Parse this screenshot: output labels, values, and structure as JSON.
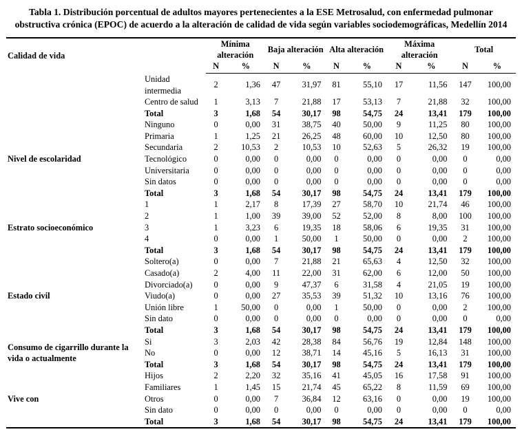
{
  "title": "Tabla 1. Distribución porcentual de adultos mayores pertenecientes a la ESE Metrosalud, con enfermedad pulmonar obstructiva crónica (EPOC) de acuerdo a la alteración de calidad de vida según variables sociodemográficas, Medellín 2014",
  "table": {
    "first_col_header": "Calidad de vida",
    "group_headers": [
      "Mínima alteración",
      "Baja alteración",
      "Alta alteración",
      "Máxima alteración",
      "Total"
    ],
    "sub_headers": [
      "N",
      "%"
    ],
    "groups": [
      {
        "label": "",
        "rows": [
          {
            "label": "Unidad intermedia",
            "bold": false,
            "values": [
              "2",
              "1,36",
              "47",
              "31,97",
              "81",
              "55,10",
              "17",
              "11,56",
              "147",
              "100,00"
            ]
          },
          {
            "label": "Centro de salud",
            "bold": false,
            "values": [
              "1",
              "3,13",
              "7",
              "21,88",
              "17",
              "53,13",
              "7",
              "21,88",
              "32",
              "100,00"
            ]
          },
          {
            "label": "Total",
            "bold": true,
            "values": [
              "3",
              "1,68",
              "54",
              "30,17",
              "98",
              "54,75",
              "24",
              "13,41",
              "179",
              "100,00"
            ]
          }
        ]
      },
      {
        "label": "Nivel de escolaridad",
        "rows": [
          {
            "label": "Ninguno",
            "bold": false,
            "values": [
              "0",
              "0,00",
              "31",
              "38,75",
              "40",
              "50,00",
              "9",
              "11,25",
              "80",
              "100,00"
            ]
          },
          {
            "label": "Primaria",
            "bold": false,
            "values": [
              "1",
              "1,25",
              "21",
              "26,25",
              "48",
              "60,00",
              "10",
              "12,50",
              "80",
              "100,00"
            ]
          },
          {
            "label": "Secundaria",
            "bold": false,
            "values": [
              "2",
              "10,53",
              "2",
              "10,53",
              "10",
              "52,63",
              "5",
              "26,32",
              "19",
              "100,00"
            ]
          },
          {
            "label": "Tecnológico",
            "bold": false,
            "values": [
              "0",
              "0,00",
              "0",
              "0,00",
              "0",
              "0,00",
              "0",
              "0,00",
              "0",
              "0,00"
            ]
          },
          {
            "label": "Universitaria",
            "bold": false,
            "values": [
              "0",
              "0,00",
              "0",
              "0,00",
              "0",
              "0,00",
              "0",
              "0,00",
              "0",
              "0,00"
            ]
          },
          {
            "label": "Sin datos",
            "bold": false,
            "values": [
              "0",
              "0,00",
              "0",
              "0,00",
              "0",
              "0,00",
              "0",
              "0,00",
              "0",
              "0,00"
            ]
          },
          {
            "label": "Total",
            "bold": true,
            "values": [
              "3",
              "1,68",
              "54",
              "30,17",
              "98",
              "54,75",
              "24",
              "13,41",
              "179",
              "100,00"
            ]
          }
        ]
      },
      {
        "label": "Estrato socioeconómico",
        "rows": [
          {
            "label": "1",
            "bold": false,
            "values": [
              "1",
              "2,17",
              "8",
              "17,39",
              "27",
              "58,70",
              "10",
              "21,74",
              "46",
              "100,00"
            ]
          },
          {
            "label": "2",
            "bold": false,
            "values": [
              "1",
              "1,00",
              "39",
              "39,00",
              "52",
              "52,00",
              "8",
              "8,00",
              "100",
              "100,00"
            ]
          },
          {
            "label": "3",
            "bold": false,
            "values": [
              "1",
              "3,23",
              "6",
              "19,35",
              "18",
              "58,06",
              "6",
              "19,35",
              "31",
              "100,00"
            ]
          },
          {
            "label": "4",
            "bold": false,
            "values": [
              "0",
              "0,00",
              "1",
              "50,00",
              "1",
              "50,00",
              "0",
              "0,00",
              "2",
              "100,00"
            ]
          },
          {
            "label": "Total",
            "bold": true,
            "values": [
              "3",
              "1,68",
              "54",
              "30,17",
              "98",
              "54,75",
              "24",
              "13,41",
              "179",
              "100,00"
            ]
          }
        ]
      },
      {
        "label": "Estado civil",
        "rows": [
          {
            "label": "Soltero(a)",
            "bold": false,
            "values": [
              "0",
              "0,00",
              "7",
              "21,88",
              "21",
              "65,63",
              "4",
              "12,50",
              "32",
              "100,00"
            ]
          },
          {
            "label": "Casado(a)",
            "bold": false,
            "values": [
              "2",
              "4,00",
              "11",
              "22,00",
              "31",
              "62,00",
              "6",
              "12,00",
              "50",
              "100,00"
            ]
          },
          {
            "label": "Divorciado(a)",
            "bold": false,
            "values": [
              "0",
              "0,00",
              "9",
              "47,37",
              "6",
              "31,58",
              "4",
              "21,05",
              "19",
              "100,00"
            ]
          },
          {
            "label": "Viudo(a)",
            "bold": false,
            "values": [
              "0",
              "0,00",
              "27",
              "35,53",
              "39",
              "51,32",
              "10",
              "13,16",
              "76",
              "100,00"
            ]
          },
          {
            "label": "Unión libre",
            "bold": false,
            "values": [
              "1",
              "50,00",
              "0",
              "0,00",
              "1",
              "50,00",
              "0",
              "0,00",
              "2",
              "100,00"
            ]
          },
          {
            "label": "Sin dato",
            "bold": false,
            "values": [
              "0",
              "0,00",
              "0",
              "0,00",
              "0",
              "0,00",
              "0",
              "0,00",
              "0",
              "0,00"
            ]
          },
          {
            "label": "Total",
            "bold": true,
            "values": [
              "3",
              "1,68",
              "54",
              "30,17",
              "98",
              "54,75",
              "24",
              "13,41",
              "179",
              "100,00"
            ]
          }
        ]
      },
      {
        "label": "Consumo de cigarrillo durante la vida o actualmente",
        "rows": [
          {
            "label": "Si",
            "bold": false,
            "values": [
              "3",
              "2,03",
              "42",
              "28,38",
              "84",
              "56,76",
              "19",
              "12,84",
              "148",
              "100,00"
            ]
          },
          {
            "label": "No",
            "bold": false,
            "values": [
              "0",
              "0,00",
              "12",
              "38,71",
              "14",
              "45,16",
              "5",
              "16,13",
              "31",
              "100,00"
            ]
          },
          {
            "label": "Total",
            "bold": true,
            "values": [
              "3",
              "1,68",
              "54",
              "30,17",
              "98",
              "54,75",
              "24",
              "13,41",
              "179",
              "100,00"
            ]
          }
        ]
      },
      {
        "label": "Vive con",
        "rows": [
          {
            "label": "Hijos",
            "bold": false,
            "values": [
              "2",
              "2,20",
              "32",
              "35,16",
              "41",
              "45,05",
              "16",
              "17,58",
              "91",
              "100,00"
            ]
          },
          {
            "label": "Familiares",
            "bold": false,
            "values": [
              "1",
              "1,45",
              "15",
              "21,74",
              "45",
              "65,22",
              "8",
              "11,59",
              "69",
              "100,00"
            ]
          },
          {
            "label": "Otros",
            "bold": false,
            "values": [
              "0",
              "0,00",
              "7",
              "36,84",
              "12",
              "63,16",
              "0",
              "0,00",
              "19",
              "100,00"
            ]
          },
          {
            "label": "Sin dato",
            "bold": false,
            "values": [
              "0",
              "0,00",
              "0",
              "0,00",
              "0",
              "0,00",
              "0",
              "0,00",
              "0",
              "0,00"
            ]
          },
          {
            "label": "Total",
            "bold": true,
            "values": [
              "3",
              "1,68",
              "54",
              "30,17",
              "98",
              "54,75",
              "24",
              "13,41",
              "179",
              "100,00"
            ]
          }
        ]
      }
    ]
  }
}
